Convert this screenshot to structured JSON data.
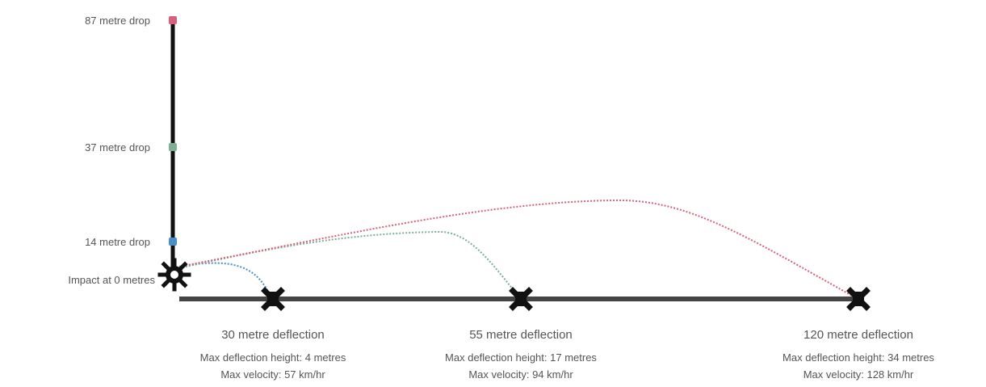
{
  "colors": {
    "line_high": "#d9607a",
    "line_mid": "#7fae96",
    "line_low": "#4a8fc7",
    "axis": "#111111",
    "ground": "#444444"
  },
  "drops": [
    {
      "label": "87 metre drop",
      "color": "#d9607a"
    },
    {
      "label": "37 metre drop",
      "color": "#7fae96"
    },
    {
      "label": "14 metre drop",
      "color": "#4a8fc7"
    }
  ],
  "impact_label": "Impact at 0 metres",
  "deflections": [
    {
      "title": "30 metre deflection",
      "max_height": "Max deflection height: 4 metres",
      "max_velocity": "Max velocity: 57 km/hr"
    },
    {
      "title": "55 metre deflection",
      "max_height": "Max deflection height: 17 metres",
      "max_velocity": "Max velocity: 94 km/hr"
    },
    {
      "title": "120 metre deflection",
      "max_height": "Max deflection height: 34 metres",
      "max_velocity": "Max velocity: 128 km/hr"
    }
  ],
  "icons": {
    "impact": "starburst-icon",
    "landing": "x-cross-icon"
  }
}
